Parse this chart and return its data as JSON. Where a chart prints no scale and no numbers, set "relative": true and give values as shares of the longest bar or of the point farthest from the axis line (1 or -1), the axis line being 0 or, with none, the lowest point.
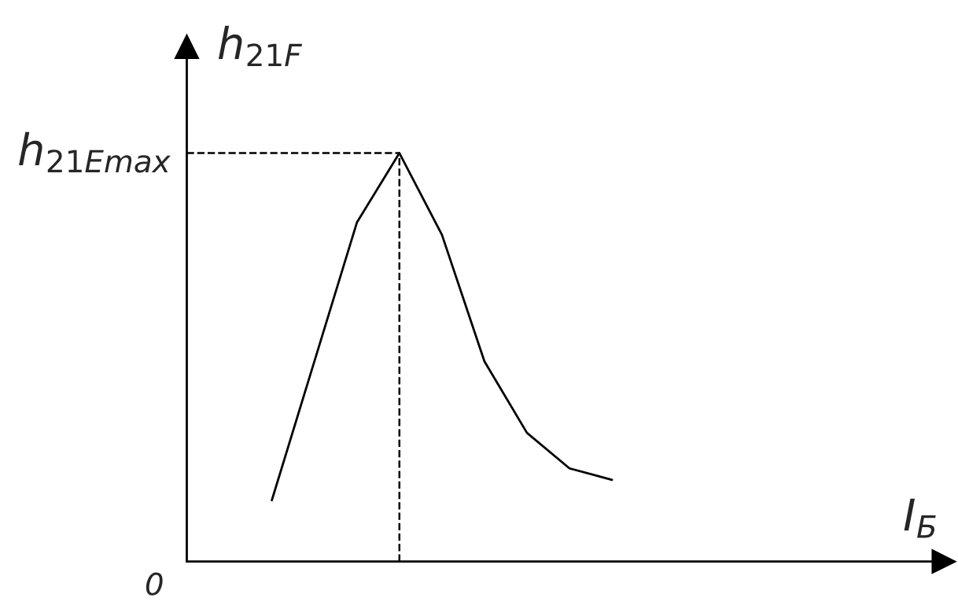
{
  "chart_data": {
    "type": "line",
    "relative": true,
    "xlabel": "I$_{Б}$",
    "ylabel": "h$_{21F}$",
    "categories": [
      null,
      null,
      null,
      null,
      null,
      null,
      null,
      null,
      null,
      null,
      null,
      null,
      null,
      null,
      null,
      null,
      null,
      null
    ],
    "series": [
      {
        "color": "#000000",
        "values": [
          null,
          null,
          0.15,
          0.49,
          0.83,
          1,
          0.8,
          0.49,
          0.315,
          0.228,
          0.2,
          null,
          null,
          null,
          null,
          null,
          null,
          null
        ]
      }
    ],
    "ref_lines": [
      {
        "axis": "y",
        "value": 1,
        "label": "h$_{21Emax}$",
        "line_style": "dashed",
        "color": "#000000"
      }
    ],
    "annotations": [
      "0"
    ],
    "marker": "none",
    "line_style": "solid",
    "legend": false
  }
}
